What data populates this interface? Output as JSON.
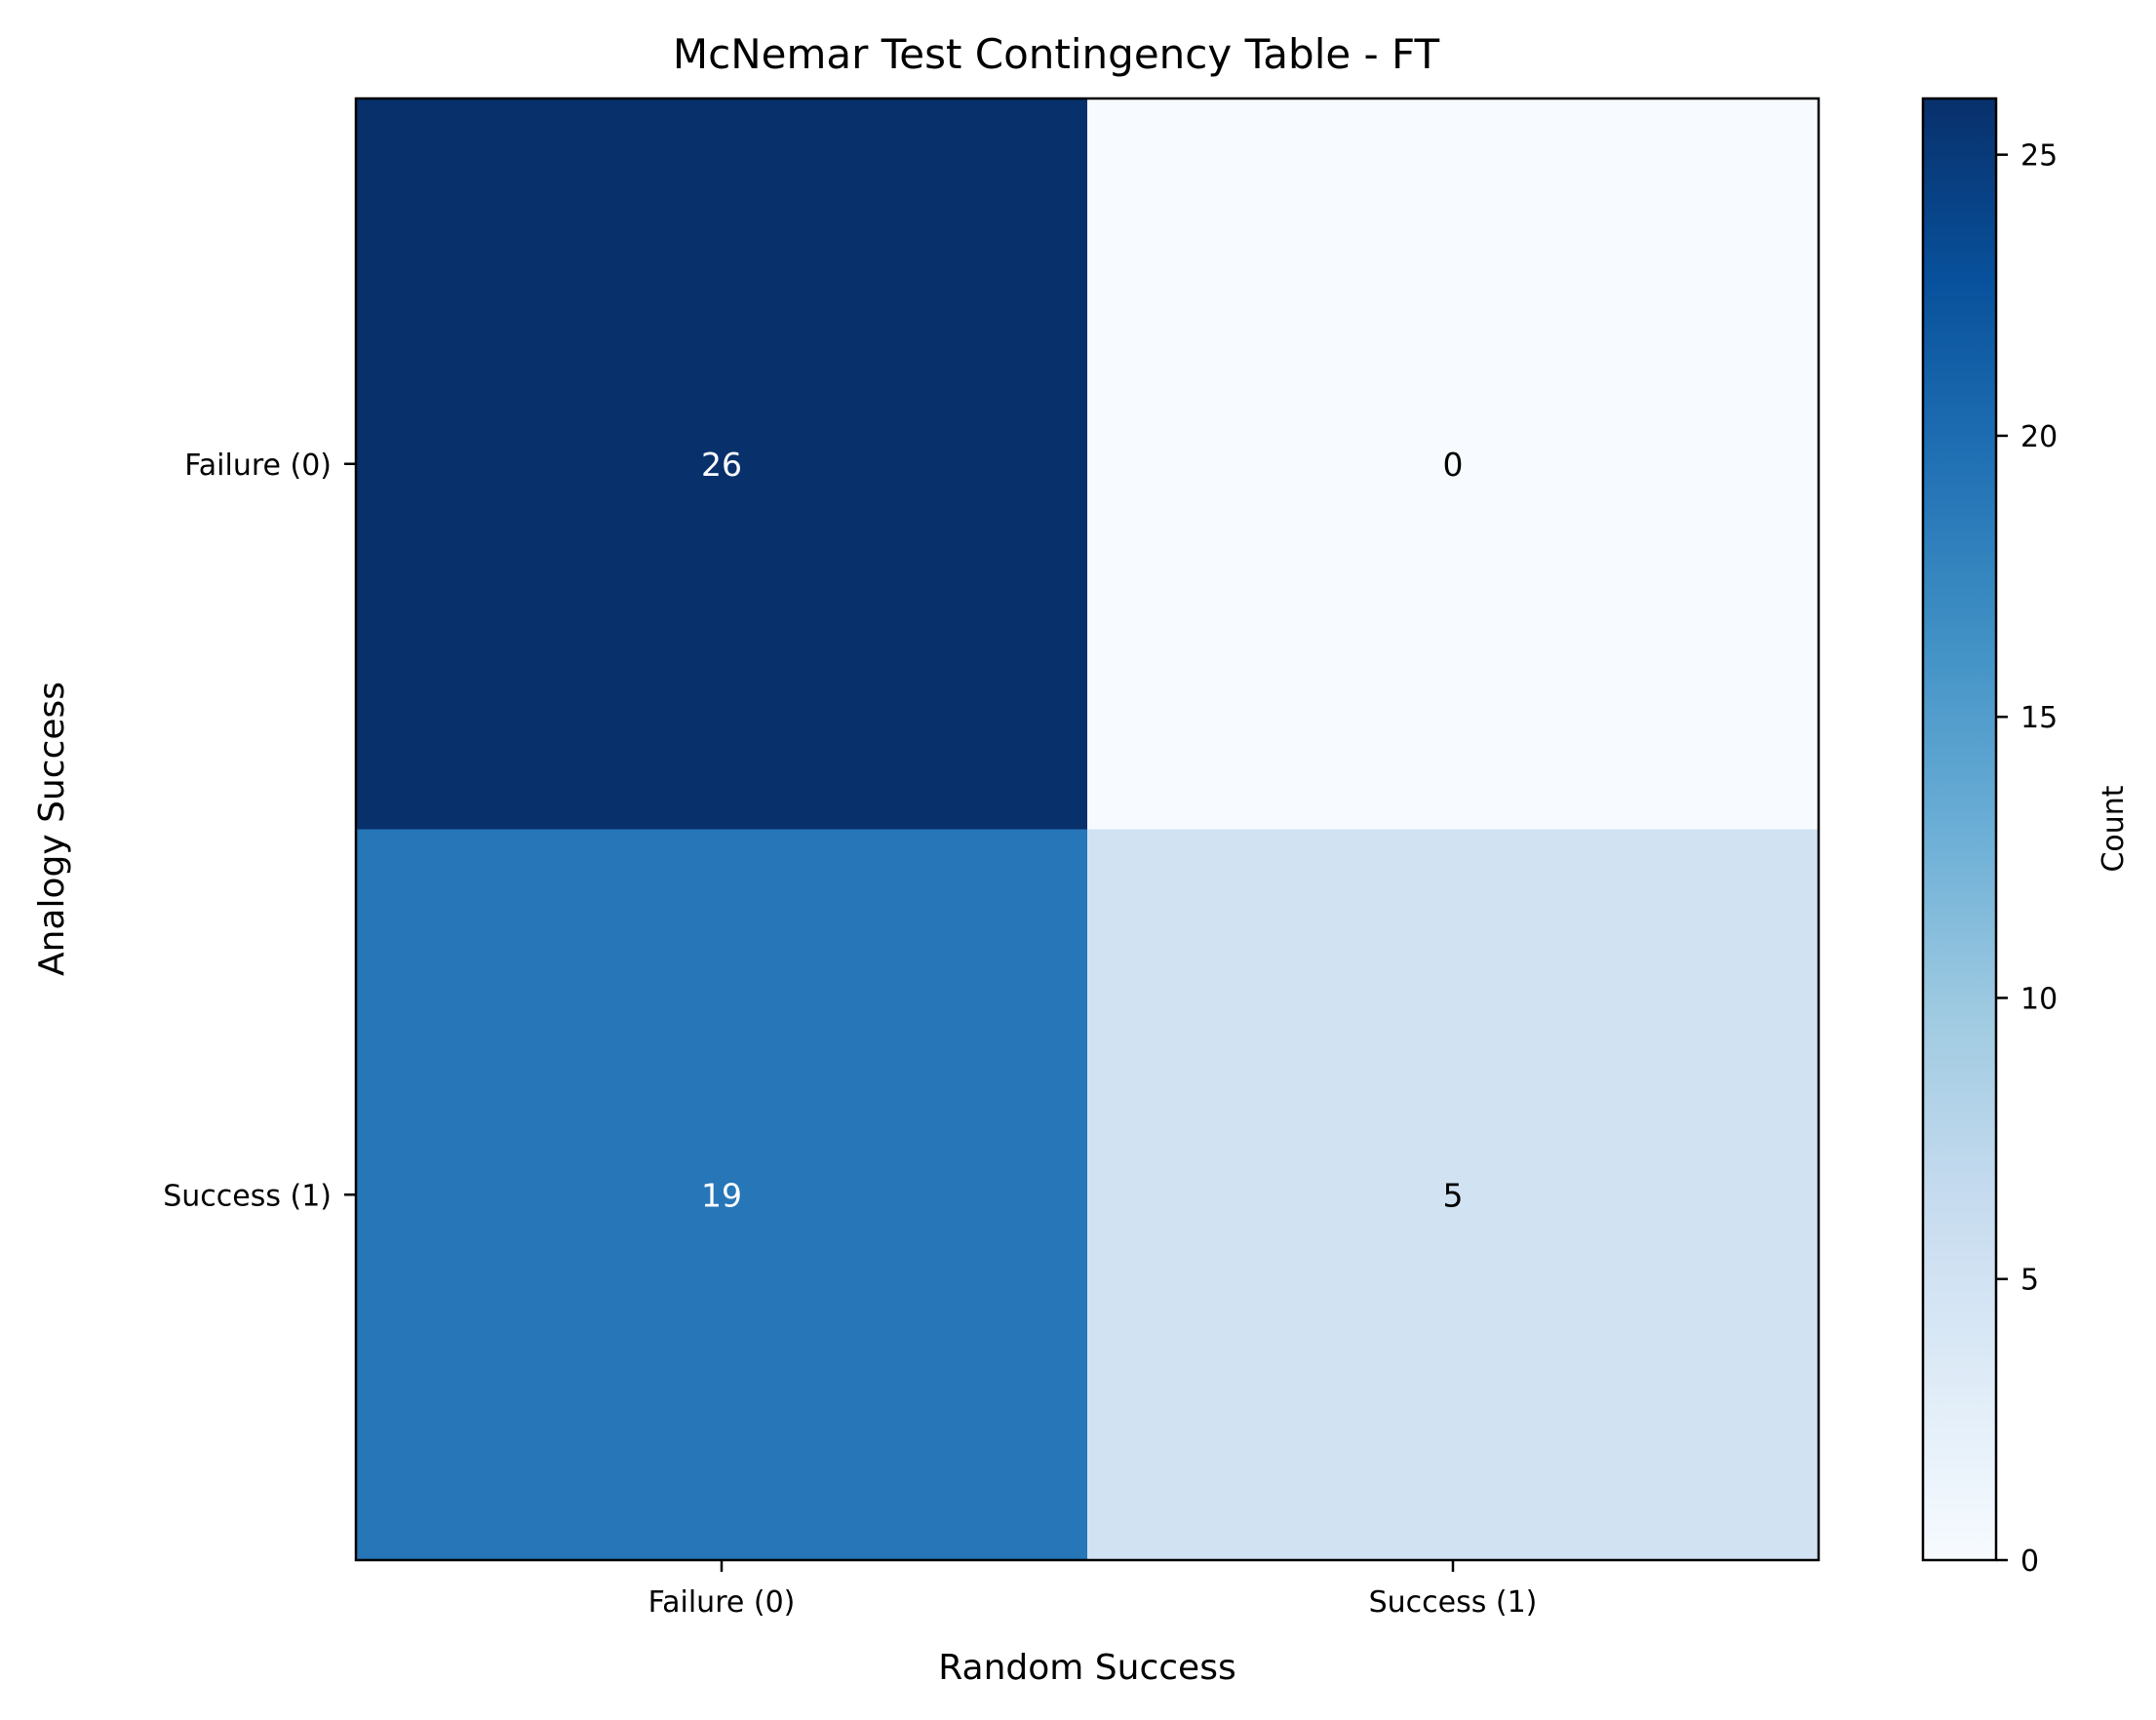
{
  "chart_data": {
    "type": "heatmap",
    "title": "McNemar Test Contingency Table - FT",
    "xlabel": "Random Success",
    "ylabel": "Analogy Success",
    "x_categories": [
      "Failure (0)",
      "Success (1)"
    ],
    "y_categories": [
      "Failure (0)",
      "Success (1)"
    ],
    "values": [
      [
        26,
        0
      ],
      [
        19,
        5
      ]
    ],
    "value_labels": [
      "26",
      "0",
      "19",
      "5"
    ],
    "colormap": "Blues",
    "colorbar": {
      "label": "Count",
      "range": [
        0,
        26
      ],
      "ticks": [
        0,
        5,
        10,
        15,
        20,
        25
      ],
      "tick_labels": [
        "0",
        "5",
        "10",
        "15",
        "20",
        "25"
      ]
    },
    "grid": false
  }
}
